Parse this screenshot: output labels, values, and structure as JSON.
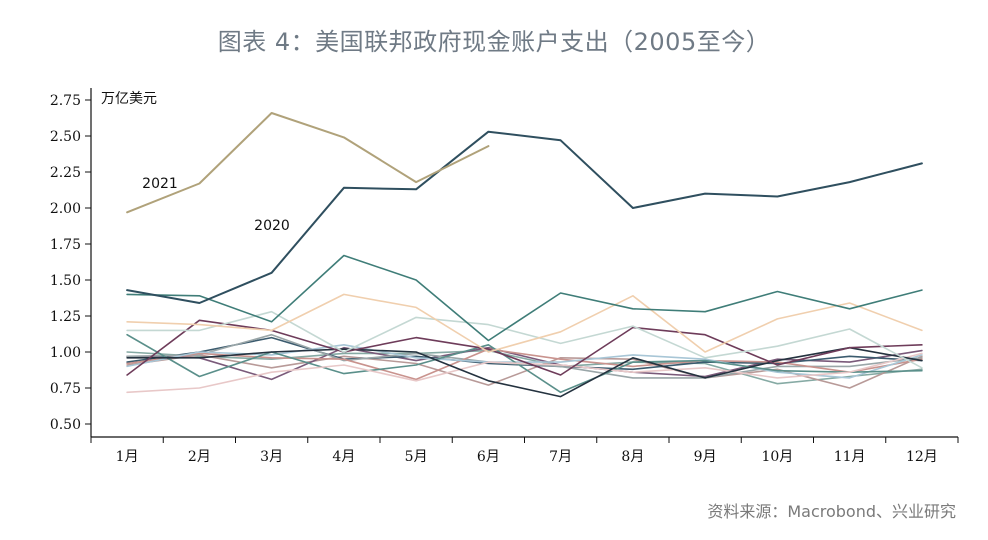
{
  "title": "图表 4：美国联邦政府现金账户支出（2005至今）",
  "source": "资料来源：Macrobond、兴业研究",
  "chart_data": {
    "type": "line",
    "unit_label": "万亿美元",
    "categories": [
      "1月",
      "2月",
      "3月",
      "4月",
      "5月",
      "6月",
      "7月",
      "8月",
      "9月",
      "10月",
      "11月",
      "12月"
    ],
    "ylim": [
      0.5,
      2.75
    ],
    "yticks": [
      "0.50",
      "0.75",
      "1.00",
      "1.25",
      "1.50",
      "1.75",
      "2.00",
      "2.25",
      "2.50",
      "2.75"
    ],
    "grid": false,
    "annotations": [
      {
        "text": "2021",
        "series": "2021"
      },
      {
        "text": "2020",
        "series": "2020"
      }
    ],
    "series": [
      {
        "key": "2021",
        "color": "#b0a27a",
        "values": [
          1.97,
          2.17,
          2.66,
          2.49,
          2.18,
          2.43,
          null,
          null,
          null,
          null,
          null,
          null
        ]
      },
      {
        "key": "2020",
        "color": "#2f4f5f",
        "values": [
          1.43,
          1.34,
          1.55,
          2.14,
          2.13,
          2.53,
          2.47,
          2.0,
          2.1,
          2.08,
          2.18,
          2.31
        ]
      },
      {
        "key": "s3",
        "color": "#3f7d78",
        "values": [
          1.4,
          1.39,
          1.21,
          1.67,
          1.5,
          1.08,
          1.41,
          1.3,
          1.28,
          1.42,
          1.3,
          1.43
        ]
      },
      {
        "key": "s4",
        "color": "#f0cfae",
        "values": [
          1.21,
          1.19,
          1.15,
          1.4,
          1.31,
          1.0,
          1.14,
          1.39,
          1.0,
          1.23,
          1.34,
          1.15
        ]
      },
      {
        "key": "s5",
        "color": "#c4d8d3",
        "values": [
          1.15,
          1.15,
          1.28,
          1.0,
          1.24,
          1.19,
          1.06,
          1.18,
          0.96,
          1.04,
          1.16,
          0.89
        ]
      },
      {
        "key": "s6",
        "color": "#6e3c5a",
        "values": [
          0.84,
          1.22,
          1.15,
          1.0,
          1.1,
          1.02,
          0.84,
          1.17,
          1.12,
          0.91,
          1.03,
          1.05
        ]
      },
      {
        "key": "s7",
        "color": "#24323f",
        "values": [
          0.96,
          0.96,
          1.0,
          1.02,
          1.0,
          0.8,
          0.69,
          0.96,
          0.82,
          0.94,
          1.03,
          0.94
        ]
      },
      {
        "key": "s8",
        "color": "#e8c8c8",
        "values": [
          0.72,
          0.75,
          0.86,
          0.91,
          0.8,
          0.93,
          0.91,
          0.86,
          0.89,
          0.82,
          0.86,
          0.99
        ]
      },
      {
        "key": "s9",
        "color": "#5a8f8a",
        "values": [
          1.12,
          0.83,
          1.0,
          0.85,
          0.91,
          1.05,
          0.72,
          0.93,
          0.94,
          0.87,
          0.86,
          0.87
        ]
      },
      {
        "key": "s10",
        "color": "#a8c6d6",
        "values": [
          0.9,
          1.0,
          0.98,
          1.05,
          0.96,
          0.93,
          0.93,
          0.98,
          0.95,
          0.86,
          0.82,
          0.98
        ]
      },
      {
        "key": "s11",
        "color": "#c9938e",
        "values": [
          0.92,
          0.99,
          0.96,
          0.95,
          0.81,
          1.02,
          0.95,
          0.9,
          0.94,
          0.93,
          0.86,
          0.95
        ]
      },
      {
        "key": "s12",
        "color": "#9aa6a8",
        "values": [
          0.97,
          0.98,
          1.12,
          0.94,
          0.99,
          0.93,
          0.9,
          0.82,
          0.82,
          0.9,
          0.9,
          0.96
        ]
      },
      {
        "key": "s13",
        "color": "#3b5b6e",
        "values": [
          0.93,
          1.0,
          1.1,
          0.95,
          0.97,
          0.92,
          0.9,
          0.88,
          0.93,
          0.92,
          0.97,
          0.94
        ]
      },
      {
        "key": "s14",
        "color": "#7a5a7a",
        "values": [
          0.97,
          0.96,
          0.81,
          1.03,
          0.94,
          1.03,
          0.91,
          0.86,
          0.83,
          0.95,
          0.93,
          1.01
        ]
      },
      {
        "key": "s15",
        "color": "#b89a98",
        "values": [
          0.91,
          0.98,
          0.89,
          0.97,
          0.92,
          0.77,
          0.96,
          0.95,
          0.82,
          0.88,
          0.75,
          0.97
        ]
      },
      {
        "key": "s16",
        "color": "#86aaa4",
        "values": [
          1.0,
          0.97,
          0.95,
          0.99,
          0.99,
          1.01,
          0.9,
          0.93,
          0.92,
          0.78,
          0.83,
          0.88
        ]
      }
    ]
  }
}
